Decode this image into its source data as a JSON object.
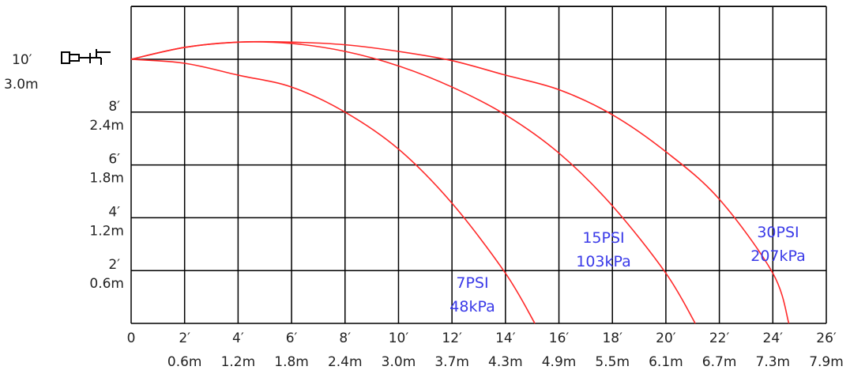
{
  "chart_data": {
    "type": "line",
    "title": "",
    "xlabel": "",
    "ylabel": "",
    "xlim": [
      0,
      26
    ],
    "ylim": [
      0,
      12
    ],
    "grid": true,
    "legend": "none",
    "colors": {
      "curve": "#ff2a2a",
      "label": "#3a3ae8",
      "grid": "#000000",
      "text": "#222222"
    },
    "x_ticks": [
      {
        "value": 0,
        "ft": "0",
        "m": ""
      },
      {
        "value": 2,
        "ft": "2′",
        "m": "0.6m"
      },
      {
        "value": 4,
        "ft": "4′",
        "m": "1.2m"
      },
      {
        "value": 6,
        "ft": "6′",
        "m": "1.8m"
      },
      {
        "value": 8,
        "ft": "8′",
        "m": "2.4m"
      },
      {
        "value": 10,
        "ft": "10′",
        "m": "3.0m"
      },
      {
        "value": 12,
        "ft": "12′",
        "m": "3.7m"
      },
      {
        "value": 14,
        "ft": "14′",
        "m": "4.3m"
      },
      {
        "value": 16,
        "ft": "16′",
        "m": "4.9m"
      },
      {
        "value": 18,
        "ft": "18′",
        "m": "5.5m"
      },
      {
        "value": 20,
        "ft": "20′",
        "m": "6.1m"
      },
      {
        "value": 22,
        "ft": "22′",
        "m": "6.7m"
      },
      {
        "value": 24,
        "ft": "24′",
        "m": "7.3m"
      },
      {
        "value": 26,
        "ft": "26′",
        "m": "7.9m"
      }
    ],
    "y_ticks": [
      {
        "value": 10,
        "ft": "10′",
        "m": "3.0m"
      },
      {
        "value": 8,
        "ft": "8′",
        "m": "2.4m"
      },
      {
        "value": 6,
        "ft": "6′",
        "m": "1.8m"
      },
      {
        "value": 4,
        "ft": "4′",
        "m": "1.2m"
      },
      {
        "value": 2,
        "ft": "2′",
        "m": "0.6m"
      }
    ],
    "series": [
      {
        "name": "7PSI 48kPa",
        "label_lines": [
          "7PSI",
          "48kPa"
        ],
        "x": [
          0,
          2,
          4,
          6,
          8,
          10,
          12,
          14,
          15.1
        ],
        "y": [
          10,
          9.85,
          9.4,
          8.95,
          8.0,
          6.6,
          4.55,
          1.9,
          0
        ]
      },
      {
        "name": "15PSI 103kPa",
        "label_lines": [
          "15PSI",
          "103kPa"
        ],
        "x": [
          0,
          2,
          4,
          6,
          8,
          10,
          12,
          14,
          16,
          18,
          20,
          21.1
        ],
        "y": [
          10,
          10.45,
          10.65,
          10.6,
          10.3,
          9.75,
          8.95,
          7.9,
          6.45,
          4.45,
          1.9,
          0
        ]
      },
      {
        "name": "30PSI 207kPa",
        "label_lines": [
          "30PSI",
          "207kPa"
        ],
        "x": [
          0,
          2,
          4,
          6,
          8,
          10,
          12,
          14,
          16,
          18,
          20,
          22,
          24,
          24.6
        ],
        "y": [
          10,
          10.45,
          10.65,
          10.65,
          10.55,
          10.3,
          9.95,
          9.4,
          8.85,
          7.9,
          6.5,
          4.7,
          1.9,
          0
        ]
      }
    ],
    "nozzle_icon": "sprinkler-nozzle-icon"
  }
}
